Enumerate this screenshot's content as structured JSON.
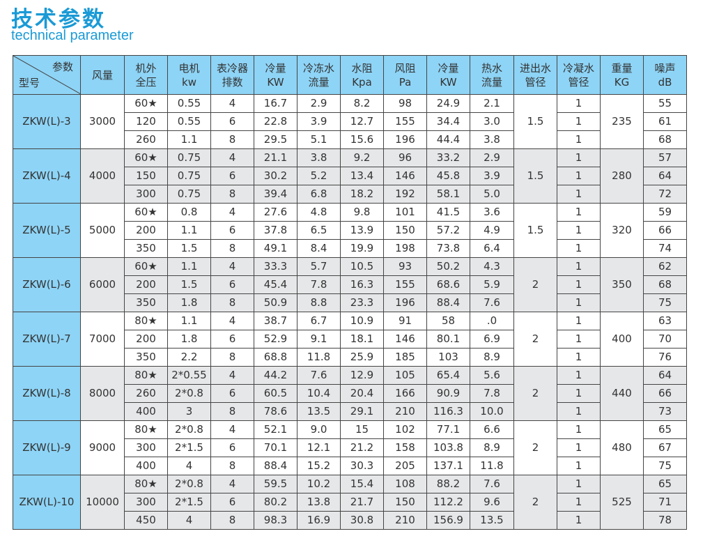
{
  "header": {
    "title": "技术参数",
    "subtitle": "technical parameter"
  },
  "colors": {
    "title": "#1a9ad6",
    "header_bg": "#8ed4f6",
    "alt_group_bg": "#e6e7e9",
    "border": "#444444"
  },
  "table": {
    "corner": {
      "top": "参数",
      "bottom": "型号"
    },
    "columns": [
      "风量",
      "机外\n全压",
      "电机\nkw",
      "表冷器\n排数",
      "冷量\nKW",
      "冷冻水\n流量",
      "水阻\nKpa",
      "风阻\nPa",
      "冷量\nKW",
      "热水\n流量",
      "进出水\n管径",
      "冷凝水\n管径",
      "重量\nKG",
      "噪声\ndB"
    ],
    "groups": [
      {
        "model": "ZKW(L)-3",
        "airflow": "3000",
        "pipe": "1.5",
        "weight": "235",
        "rows": [
          [
            "60★",
            "0.55",
            "4",
            "16.7",
            "2.9",
            "8.2",
            "98",
            "24.9",
            "2.1",
            "1",
            "55"
          ],
          [
            "120",
            "0.55",
            "6",
            "22.8",
            "3.9",
            "12.7",
            "155",
            "34.4",
            "3.0",
            "1",
            "61"
          ],
          [
            "260",
            "1.1",
            "8",
            "29.5",
            "5.1",
            "15.6",
            "196",
            "44.4",
            "3.8",
            "1",
            "68"
          ]
        ]
      },
      {
        "model": "ZKW(L)-4",
        "airflow": "4000",
        "pipe": "1.5",
        "weight": "280",
        "rows": [
          [
            "60★",
            "0.75",
            "4",
            "21.1",
            "3.8",
            "9.2",
            "96",
            "33.2",
            "2.9",
            "1",
            "57"
          ],
          [
            "150",
            "0.75",
            "6",
            "30.2",
            "5.2",
            "13.4",
            "146",
            "45.8",
            "3.9",
            "1",
            "64"
          ],
          [
            "300",
            "0.75",
            "8",
            "39.4",
            "6.8",
            "18.2",
            "192",
            "58.1",
            "5.0",
            "1",
            "72"
          ]
        ]
      },
      {
        "model": "ZKW(L)-5",
        "airflow": "5000",
        "pipe": "1.5",
        "weight": "320",
        "rows": [
          [
            "60★",
            "0.8",
            "4",
            "27.6",
            "4.8",
            "9.8",
            "101",
            "41.5",
            "3.6",
            "1",
            "59"
          ],
          [
            "200",
            "1.1",
            "6",
            "37.8",
            "6.5",
            "13.9",
            "150",
            "57.2",
            "4.9",
            "1",
            "66"
          ],
          [
            "350",
            "1.5",
            "8",
            "49.1",
            "8.4",
            "19.9",
            "198",
            "73.8",
            "6.4",
            "1",
            "74"
          ]
        ]
      },
      {
        "model": "ZKW(L)-6",
        "airflow": "6000",
        "pipe": "2",
        "weight": "350",
        "rows": [
          [
            "60★",
            "1.1",
            "4",
            "33.3",
            "5.7",
            "10.5",
            "93",
            "50.2",
            "4.3",
            "1",
            "62"
          ],
          [
            "200",
            "1.5",
            "6",
            "45.4",
            "7.8",
            "16.3",
            "155",
            "68.6",
            "5.9",
            "1",
            "68"
          ],
          [
            "350",
            "1.8",
            "8",
            "50.9",
            "8.8",
            "23.3",
            "196",
            "88.4",
            "7.6",
            "1",
            "75"
          ]
        ]
      },
      {
        "model": "ZKW(L)-7",
        "airflow": "7000",
        "pipe": "2",
        "weight": "400",
        "rows": [
          [
            "80★",
            "1.1",
            "4",
            "38.7",
            "6.7",
            "10.9",
            "91",
            "58",
            ".0",
            "1",
            "63"
          ],
          [
            "200",
            "1.8",
            "6",
            "52.9",
            "9.1",
            "18.1",
            "146",
            "80.1",
            "6.9",
            "1",
            "70"
          ],
          [
            "350",
            "2.2",
            "8",
            "68.8",
            "11.8",
            "25.9",
            "185",
            "103",
            "8.9",
            "1",
            "76"
          ]
        ]
      },
      {
        "model": "ZKW(L)-8",
        "airflow": "8000",
        "pipe": "2",
        "weight": "440",
        "rows": [
          [
            "80★",
            "2*0.55",
            "4",
            "44.2",
            "7.6",
            "12.9",
            "105",
            "65.4",
            "5.6",
            "1",
            "64"
          ],
          [
            "260",
            "2*0.8",
            "6",
            "60.5",
            "10.4",
            "20.4",
            "166",
            "90.9",
            "7.8",
            "1",
            "66"
          ],
          [
            "400",
            "3",
            "8",
            "78.6",
            "13.5",
            "29.1",
            "210",
            "116.3",
            "10.0",
            "1",
            "73"
          ]
        ]
      },
      {
        "model": "ZKW(L)-9",
        "airflow": "9000",
        "pipe": "2",
        "weight": "480",
        "rows": [
          [
            "80★",
            "2*0.8",
            "4",
            "52.1",
            "9.0",
            "15",
            "102",
            "77.1",
            "6.6",
            "1",
            "65"
          ],
          [
            "300",
            "2*1.5",
            "6",
            "70.1",
            "12.1",
            "21.2",
            "158",
            "103.8",
            "8.9",
            "1",
            "67"
          ],
          [
            "400",
            "4",
            "8",
            "88.4",
            "15.2",
            "30.3",
            "205",
            "137.1",
            "11.8",
            "1",
            "75"
          ]
        ]
      },
      {
        "model": "ZKW(L)-10",
        "airflow": "10000",
        "pipe": "2",
        "weight": "525",
        "rows": [
          [
            "80★",
            "2*0.8",
            "4",
            "59.5",
            "10.2",
            "15.4",
            "108",
            "88.2",
            "7.6",
            "1",
            "65"
          ],
          [
            "300",
            "2*1.5",
            "6",
            "80.2",
            "13.8",
            "21.7",
            "150",
            "112.2",
            "9.6",
            "1",
            "71"
          ],
          [
            "450",
            "4",
            "8",
            "98.3",
            "16.9",
            "30.8",
            "210",
            "156.9",
            "13.5",
            "1",
            "78"
          ]
        ]
      }
    ]
  }
}
